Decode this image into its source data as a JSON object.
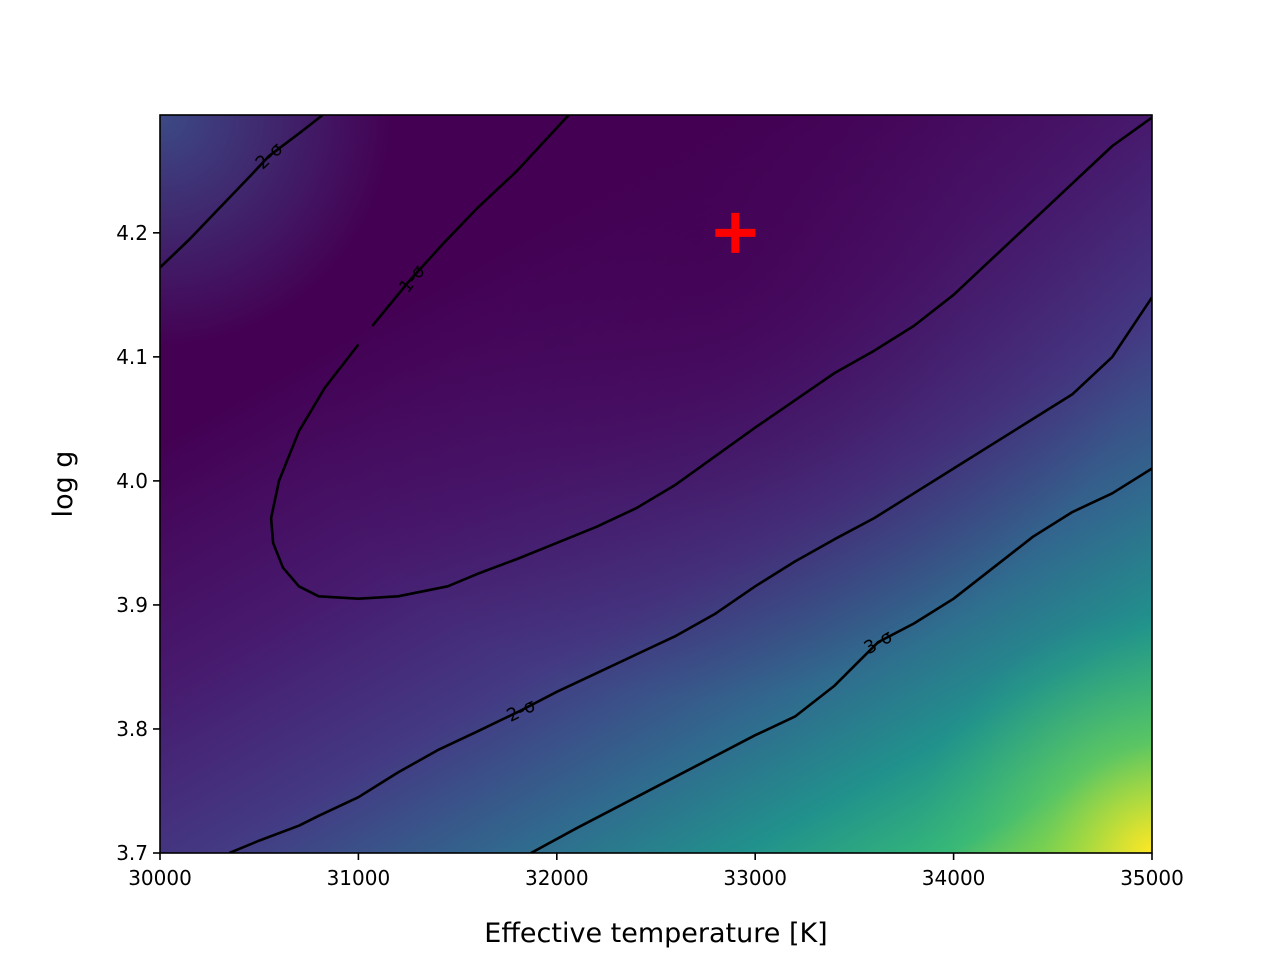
{
  "chart_data": {
    "type": "heatmap",
    "title": "",
    "xlabel": "Effective temperature [K]",
    "ylabel": "log g",
    "xlim": [
      30000,
      35000
    ],
    "ylim": [
      3.7,
      4.295
    ],
    "x_ticks": [
      30000,
      31000,
      32000,
      33000,
      34000,
      35000
    ],
    "x_tick_labels": [
      "30000",
      "31000",
      "32000",
      "33000",
      "34000",
      "35000"
    ],
    "y_ticks": [
      3.7,
      3.8,
      3.9,
      4.0,
      4.1,
      4.2
    ],
    "y_tick_labels": [
      "3.7",
      "3.8",
      "3.9",
      "4.0",
      "4.1",
      "4.2"
    ],
    "colormap": "viridis",
    "grid": false,
    "best_fit": {
      "teff": 32900,
      "logg": 4.2,
      "marker": "plus",
      "color": "#ff0000"
    },
    "contours": [
      {
        "label": "1-σ",
        "label_at": [
          31270,
          4.163
        ],
        "label_angle": -52,
        "points": [
          [
            31070,
            4.125
          ],
          [
            31250,
            4.16
          ],
          [
            31420,
            4.19
          ],
          [
            31600,
            4.22
          ],
          [
            31800,
            4.25
          ],
          [
            32060,
            4.295
          ]
        ]
      },
      {
        "label": "",
        "points": [
          [
            31000,
            4.11
          ],
          [
            30830,
            4.075
          ],
          [
            30700,
            4.04
          ],
          [
            30600,
            4.0
          ],
          [
            30560,
            3.97
          ],
          [
            30570,
            3.95
          ],
          [
            30620,
            3.93
          ],
          [
            30700,
            3.915
          ],
          [
            30800,
            3.907
          ],
          [
            31000,
            3.905
          ],
          [
            31200,
            3.907
          ],
          [
            31450,
            3.915
          ],
          [
            31600,
            3.925
          ],
          [
            31800,
            3.937
          ],
          [
            32000,
            3.95
          ],
          [
            32200,
            3.963
          ],
          [
            32400,
            3.978
          ],
          [
            32600,
            3.997
          ],
          [
            32800,
            4.02
          ],
          [
            33000,
            4.043
          ],
          [
            33200,
            4.065
          ],
          [
            33400,
            4.087
          ],
          [
            33600,
            4.105
          ],
          [
            33800,
            4.125
          ],
          [
            34000,
            4.15
          ],
          [
            34200,
            4.18
          ],
          [
            34400,
            4.21
          ],
          [
            34600,
            4.24
          ],
          [
            34800,
            4.27
          ],
          [
            35000,
            4.293
          ]
        ]
      },
      {
        "label": "2-σ",
        "label_at": [
          30550,
          4.262
        ],
        "label_angle": -43,
        "points": [
          [
            30000,
            4.172
          ],
          [
            30150,
            4.195
          ],
          [
            30300,
            4.22
          ],
          [
            30450,
            4.245
          ],
          [
            30550,
            4.262
          ],
          [
            30700,
            4.28
          ],
          [
            30820,
            4.295
          ]
        ]
      },
      {
        "label": "2-σ",
        "label_at": [
          31820,
          3.815
        ],
        "label_angle": -26,
        "points": [
          [
            30350,
            3.7
          ],
          [
            30500,
            3.71
          ],
          [
            30700,
            3.722
          ],
          [
            30800,
            3.73
          ],
          [
            31000,
            3.745
          ],
          [
            31200,
            3.765
          ],
          [
            31400,
            3.783
          ],
          [
            31600,
            3.798
          ],
          [
            31820,
            3.815
          ],
          [
            32000,
            3.83
          ],
          [
            32200,
            3.845
          ],
          [
            32400,
            3.86
          ],
          [
            32600,
            3.875
          ],
          [
            32800,
            3.893
          ],
          [
            33000,
            3.915
          ],
          [
            33200,
            3.935
          ],
          [
            33400,
            3.953
          ],
          [
            33600,
            3.97
          ],
          [
            33800,
            3.99
          ],
          [
            34000,
            4.01
          ],
          [
            34200,
            4.03
          ],
          [
            34400,
            4.05
          ],
          [
            34600,
            4.07
          ],
          [
            34800,
            4.1
          ],
          [
            35000,
            4.148
          ]
        ]
      },
      {
        "label": "3-σ",
        "label_at": [
          33620,
          3.87
        ],
        "label_angle": -30,
        "points": [
          [
            31870,
            3.7
          ],
          [
            32100,
            3.72
          ],
          [
            32400,
            3.745
          ],
          [
            32700,
            3.77
          ],
          [
            33000,
            3.795
          ],
          [
            33200,
            3.81
          ],
          [
            33400,
            3.835
          ],
          [
            33620,
            3.87
          ],
          [
            33800,
            3.885
          ],
          [
            34000,
            3.905
          ],
          [
            34200,
            3.93
          ],
          [
            34400,
            3.955
          ],
          [
            34600,
            3.975
          ],
          [
            34800,
            3.99
          ],
          [
            35000,
            4.01
          ]
        ]
      }
    ]
  }
}
